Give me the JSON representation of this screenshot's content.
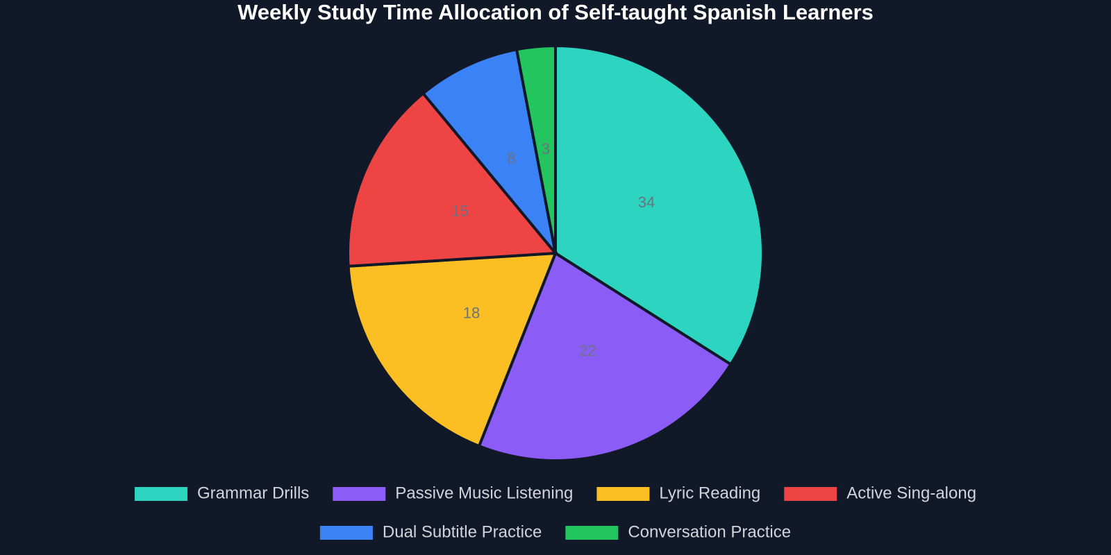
{
  "chart_data": {
    "type": "pie",
    "title": "Weekly Study Time Allocation of Self-taught Spanish Learners",
    "categories": [
      "Grammar Drills",
      "Passive Music Listening",
      "Lyric Reading",
      "Active Sing-along",
      "Dual Subtitle Practice",
      "Conversation Practice"
    ],
    "values": [
      34,
      22,
      18,
      15,
      8,
      3
    ],
    "colors": [
      "#2dd4bf",
      "#8b5cf6",
      "#fbbf24",
      "#ef4444",
      "#3b82f6",
      "#22c55e"
    ]
  }
}
